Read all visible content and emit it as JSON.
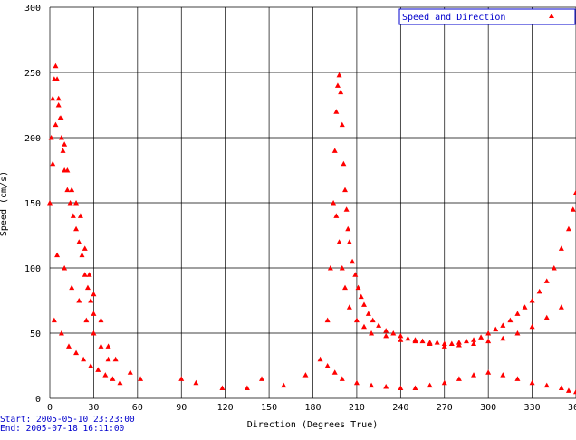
{
  "chart_data": {
    "type": "scatter",
    "xlabel": "Direction (Degrees True)",
    "ylabel": "Speed (cm/s)",
    "xlim": [
      0,
      360
    ],
    "ylim": [
      0,
      300
    ],
    "x_ticks": [
      "0",
      "30",
      "60",
      "90",
      "120",
      "150",
      "180",
      "210",
      "240",
      "270",
      "300",
      "330",
      "360"
    ],
    "y_ticks": [
      "0",
      "50",
      "100",
      "150",
      "200",
      "250",
      "300"
    ],
    "grid": true,
    "legend_position": "top-right",
    "marker": "triangle",
    "colors": {
      "points": "#ff0000",
      "legend_text": "#0000cc",
      "meta_text": "#0000cc",
      "grid": "#000000"
    },
    "series": [
      {
        "name": "Speed and Direction",
        "x": [
          0,
          1,
          2,
          3,
          4,
          5,
          6,
          7,
          8,
          9,
          10,
          12,
          14,
          16,
          18,
          20,
          22,
          24,
          26,
          28,
          30,
          2,
          4,
          6,
          8,
          10,
          12,
          15,
          18,
          21,
          24,
          27,
          30,
          35,
          40,
          45,
          5,
          10,
          15,
          20,
          25,
          30,
          35,
          40,
          3,
          8,
          13,
          18,
          23,
          28,
          33,
          38,
          43,
          48,
          55,
          62,
          90,
          100,
          118,
          135,
          145,
          160,
          175,
          185,
          190,
          192,
          194,
          195,
          196,
          197,
          198,
          199,
          200,
          201,
          202,
          203,
          204,
          205,
          207,
          209,
          211,
          213,
          215,
          218,
          221,
          225,
          230,
          235,
          240,
          245,
          250,
          255,
          260,
          265,
          270,
          275,
          280,
          285,
          290,
          295,
          300,
          305,
          310,
          315,
          320,
          325,
          330,
          335,
          340,
          345,
          350,
          355,
          358,
          360,
          196,
          198,
          200,
          202,
          205,
          210,
          215,
          220,
          230,
          240,
          250,
          260,
          270,
          280,
          290,
          300,
          310,
          320,
          330,
          340,
          350,
          190,
          195,
          200,
          210,
          220,
          230,
          240,
          250,
          260,
          270,
          280,
          290,
          300,
          310,
          320,
          330,
          340,
          350,
          355,
          360
        ],
        "y": [
          150,
          200,
          230,
          245,
          255,
          245,
          230,
          215,
          200,
          190,
          175,
          160,
          150,
          140,
          130,
          120,
          110,
          95,
          85,
          75,
          65,
          180,
          210,
          225,
          215,
          195,
          175,
          160,
          150,
          140,
          115,
          95,
          80,
          60,
          40,
          30,
          110,
          100,
          85,
          75,
          60,
          50,
          40,
          30,
          60,
          50,
          40,
          35,
          30,
          25,
          22,
          18,
          15,
          12,
          20,
          15,
          15,
          12,
          8,
          8,
          15,
          10,
          18,
          30,
          60,
          100,
          150,
          190,
          220,
          240,
          248,
          235,
          210,
          180,
          160,
          145,
          130,
          120,
          105,
          95,
          85,
          78,
          72,
          65,
          60,
          56,
          52,
          50,
          48,
          46,
          45,
          44,
          43,
          43,
          42,
          42,
          43,
          44,
          45,
          47,
          50,
          53,
          56,
          60,
          65,
          70,
          75,
          82,
          90,
          100,
          115,
          130,
          145,
          158,
          140,
          120,
          100,
          85,
          70,
          60,
          55,
          50,
          48,
          45,
          44,
          42,
          40,
          41,
          42,
          44,
          46,
          50,
          55,
          62,
          70,
          25,
          20,
          15,
          12,
          10,
          9,
          8,
          8,
          10,
          12,
          15,
          18,
          20,
          18,
          15,
          12,
          10,
          8,
          6,
          5
        ]
      }
    ],
    "annotations": [
      "Start: 2005-05-10 23:23:00",
      "End: 2005-07-18 16:11:00"
    ]
  }
}
